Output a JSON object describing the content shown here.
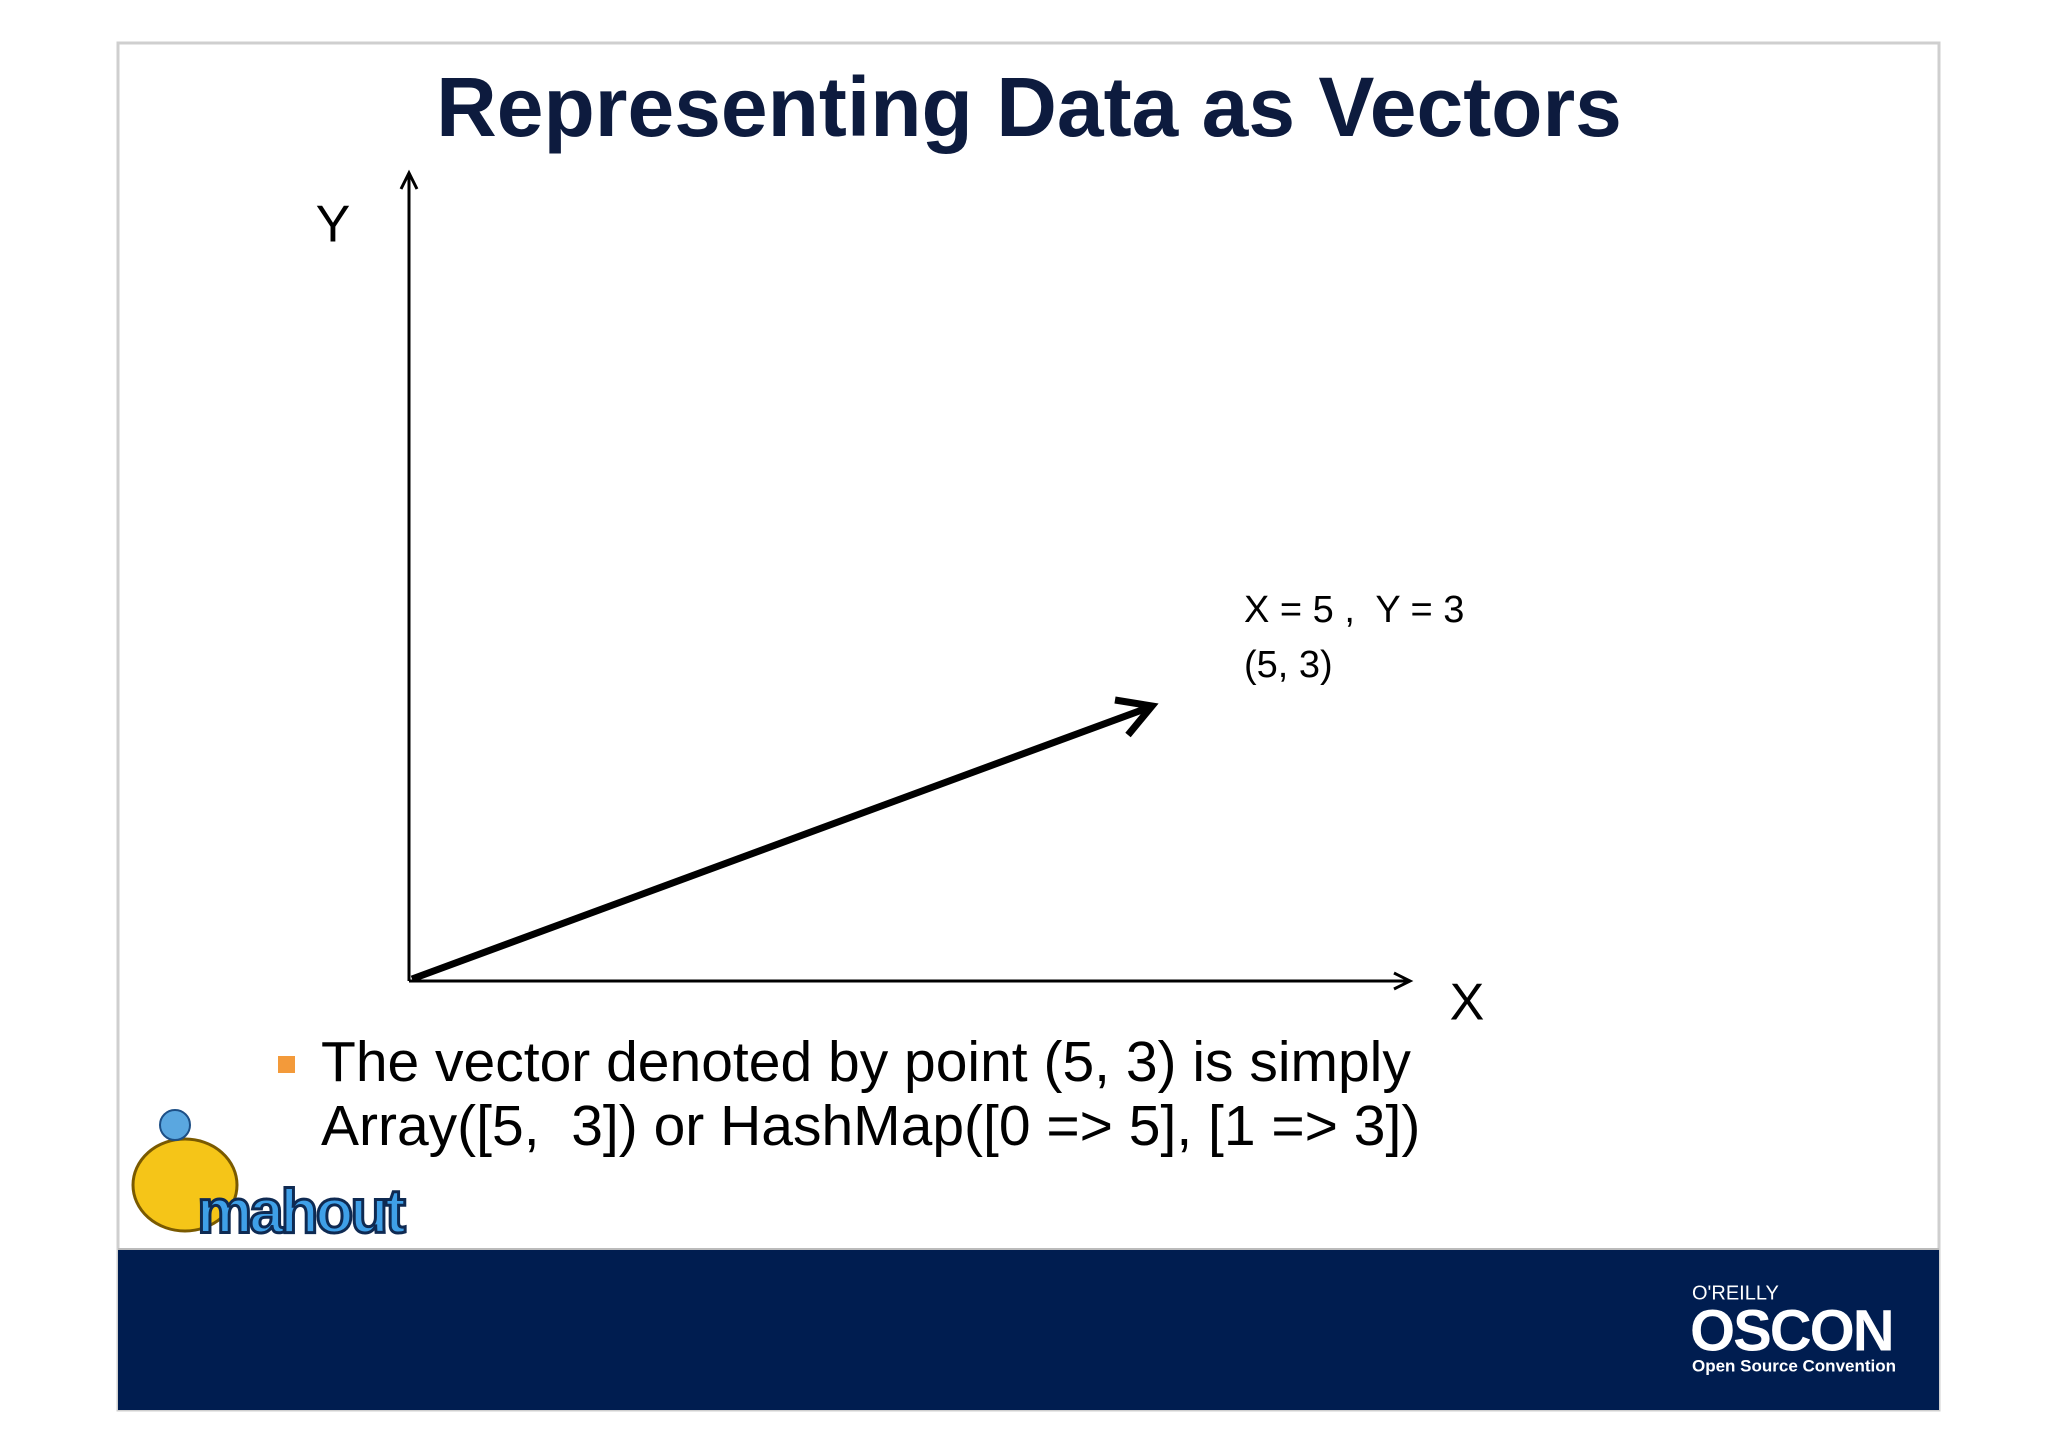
{
  "slide": {
    "title": "Representing Data as Vectors",
    "axes": {
      "y_label": "Y",
      "x_label": "X"
    },
    "annotation": [
      "X = 5 ,  Y = 3",
      "(5, 3)"
    ],
    "bullet": [
      "The vector denoted by point (5, 3) is simply",
      "Array([5,  3]) or HashMap([0 => 5], [1 => 3])"
    ],
    "logo_left": "mahout",
    "logo_right": {
      "publisher": "O'REILLY",
      "name": "OSCON",
      "tagline": "Open Source Convention"
    }
  }
}
